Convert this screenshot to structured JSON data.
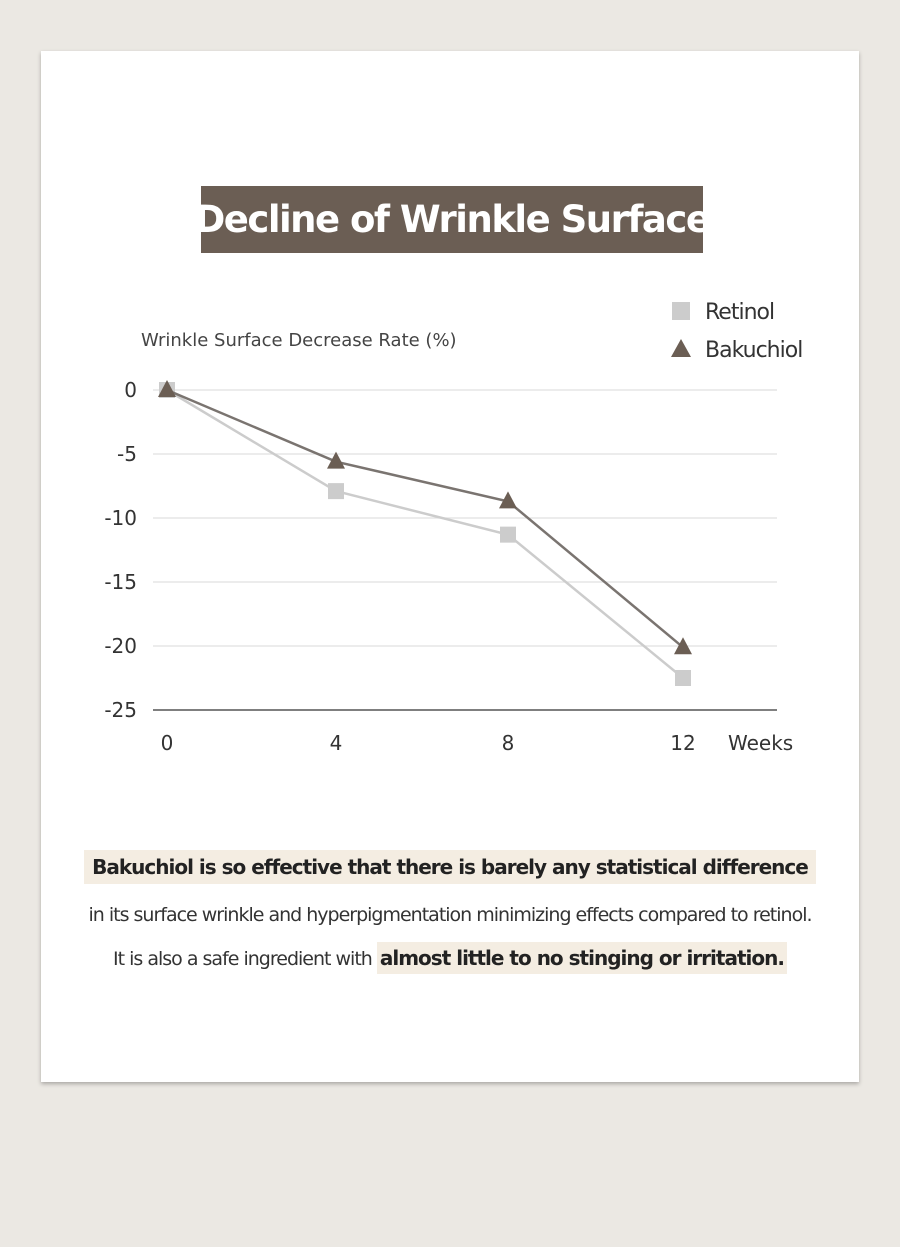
{
  "colors": {
    "background": "#ebe8e3",
    "card": "#ffffff",
    "title_box": "#6b5e54",
    "highlight": "#f4ede2",
    "retinol": "#cccccc",
    "bakuchiol_line": "#7a7470",
    "bakuchiol_marker": "#6b5e54"
  },
  "chart_data": {
    "type": "line",
    "title": "Decline of Wrinkle Surface",
    "ylabel": "Wrinkle Surface Decrease Rate (%)",
    "xlabel": "Weeks",
    "x": [
      0,
      4,
      8,
      12
    ],
    "x_tick_labels": [
      "0",
      "4",
      "8",
      "12"
    ],
    "ylim": [
      -25,
      0
    ],
    "y_ticks": [
      0,
      -5,
      -10,
      -15,
      -20,
      -25
    ],
    "y_tick_labels": [
      "0",
      "-5",
      "-10",
      "-15",
      "-20",
      "-25"
    ],
    "grid": true,
    "legend_position": "top-right",
    "series": [
      {
        "name": "Retinol",
        "marker": "square",
        "color": "#cccccc",
        "values": [
          0,
          -7.9,
          -11.3,
          -22.5
        ]
      },
      {
        "name": "Bakuchiol",
        "marker": "triangle",
        "color": "#6b5e54",
        "values": [
          0,
          -5.6,
          -8.7,
          -20.1
        ]
      }
    ]
  },
  "text": {
    "line1_highlight": "Bakuchiol is so effective that there is barely any statistical difference",
    "line2": "in its surface wrinkle and hyperpigmentation minimizing effects compared to retinol.",
    "line3_prefix": "It is also a safe ingredient with ",
    "line3_highlight": "almost little to no stinging or irritation."
  }
}
